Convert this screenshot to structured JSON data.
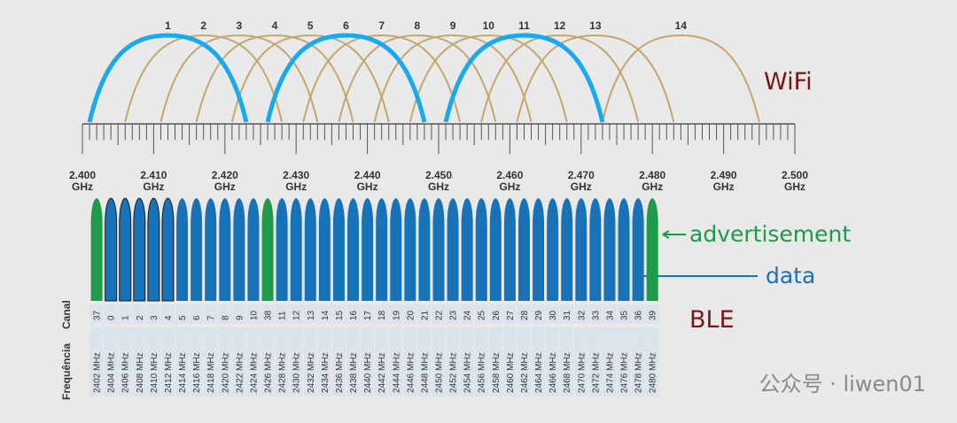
{
  "wifi": {
    "label": "WiFi",
    "channels": [
      {
        "label": "1",
        "color": "#1aa9ee"
      },
      {
        "label": "2",
        "color": "#c4a76e"
      },
      {
        "label": "3",
        "color": "#c4a76e"
      },
      {
        "label": "4",
        "color": "#c4a76e"
      },
      {
        "label": "5",
        "color": "#c4a76e"
      },
      {
        "label": "6",
        "color": "#1aa9ee"
      },
      {
        "label": "7",
        "color": "#c4a76e"
      },
      {
        "label": "8",
        "color": "#c4a76e"
      },
      {
        "label": "9",
        "color": "#c4a76e"
      },
      {
        "label": "10",
        "color": "#c4a76e"
      },
      {
        "label": "11",
        "color": "#1aa9ee"
      },
      {
        "label": "12",
        "color": "#c4a76e"
      },
      {
        "label": "13",
        "color": "#c4a76e"
      },
      {
        "label": "14",
        "color": "#c4a76e"
      }
    ]
  },
  "scale": {
    "unit": "GHz",
    "ticks": [
      "2.400",
      "2.410",
      "2.420",
      "2.430",
      "2.440",
      "2.450",
      "2.460",
      "2.470",
      "2.480",
      "2.490",
      "2.500"
    ]
  },
  "ble": {
    "label": "BLE",
    "channel_header": "Canal",
    "frequency_header": "Frequência",
    "advertisement": "advertisement",
    "data": "data",
    "channels": [
      {
        "number": "37",
        "frequency": "2402 MHz",
        "color": "#1e9a48"
      },
      {
        "number": "0",
        "frequency": "2404 MHz",
        "color": "#1772b8"
      },
      {
        "number": "1",
        "frequency": "2406 MHz",
        "color": "#1772b8"
      },
      {
        "number": "2",
        "frequency": "2408 MHz",
        "color": "#1772b8"
      },
      {
        "number": "3",
        "frequency": "2410 MHz",
        "color": "#1772b8"
      },
      {
        "number": "4",
        "frequency": "2412 MHz",
        "color": "#1772b8"
      },
      {
        "number": "5",
        "frequency": "2414 MHz",
        "color": "#1772b8"
      },
      {
        "number": "6",
        "frequency": "2416 MHz",
        "color": "#1772b8"
      },
      {
        "number": "7",
        "frequency": "2418 MHz",
        "color": "#1772b8"
      },
      {
        "number": "8",
        "frequency": "2420 MHz",
        "color": "#1772b8"
      },
      {
        "number": "9",
        "frequency": "2422 MHz",
        "color": "#1772b8"
      },
      {
        "number": "10",
        "frequency": "2424 MHz",
        "color": "#1772b8"
      },
      {
        "number": "38",
        "frequency": "2426 MHz",
        "color": "#1e9a48"
      },
      {
        "number": "11",
        "frequency": "2428 MHz",
        "color": "#1772b8"
      },
      {
        "number": "12",
        "frequency": "2430 MHz",
        "color": "#1772b8"
      },
      {
        "number": "13",
        "frequency": "2432 MHz",
        "color": "#1772b8"
      },
      {
        "number": "14",
        "frequency": "2434 MHz",
        "color": "#1772b8"
      },
      {
        "number": "15",
        "frequency": "2436 MHz",
        "color": "#1772b8"
      },
      {
        "number": "16",
        "frequency": "2438 MHz",
        "color": "#1772b8"
      },
      {
        "number": "17",
        "frequency": "2440 MHz",
        "color": "#1772b8"
      },
      {
        "number": "18",
        "frequency": "2442 MHz",
        "color": "#1772b8"
      },
      {
        "number": "19",
        "frequency": "2444 MHz",
        "color": "#1772b8"
      },
      {
        "number": "20",
        "frequency": "2446 MHz",
        "color": "#1772b8"
      },
      {
        "number": "21",
        "frequency": "2448 MHz",
        "color": "#1772b8"
      },
      {
        "number": "22",
        "frequency": "2450 MHz",
        "color": "#1772b8"
      },
      {
        "number": "23",
        "frequency": "2452 MHz",
        "color": "#1772b8"
      },
      {
        "number": "24",
        "frequency": "2454 MHz",
        "color": "#1772b8"
      },
      {
        "number": "25",
        "frequency": "2456 MHz",
        "color": "#1772b8"
      },
      {
        "number": "26",
        "frequency": "2458 MHz",
        "color": "#1772b8"
      },
      {
        "number": "27",
        "frequency": "2460 MHz",
        "color": "#1772b8"
      },
      {
        "number": "28",
        "frequency": "2462 MHz",
        "color": "#1772b8"
      },
      {
        "number": "29",
        "frequency": "2464 MHz",
        "color": "#1772b8"
      },
      {
        "number": "30",
        "frequency": "2466 MHz",
        "color": "#1772b8"
      },
      {
        "number": "31",
        "frequency": "2468 MHz",
        "color": "#1772b8"
      },
      {
        "number": "32",
        "frequency": "2470 MHz",
        "color": "#1772b8"
      },
      {
        "number": "33",
        "frequency": "2472 MHz",
        "color": "#1772b8"
      },
      {
        "number": "34",
        "frequency": "2474 MHz",
        "color": "#1772b8"
      },
      {
        "number": "35",
        "frequency": "2476 MHz",
        "color": "#1772b8"
      },
      {
        "number": "36",
        "frequency": "2478 MHz",
        "color": "#1772b8"
      },
      {
        "number": "39",
        "frequency": "2480 MHz",
        "color": "#1e9a48"
      }
    ]
  },
  "watermark": "公众号 · liwen01"
}
